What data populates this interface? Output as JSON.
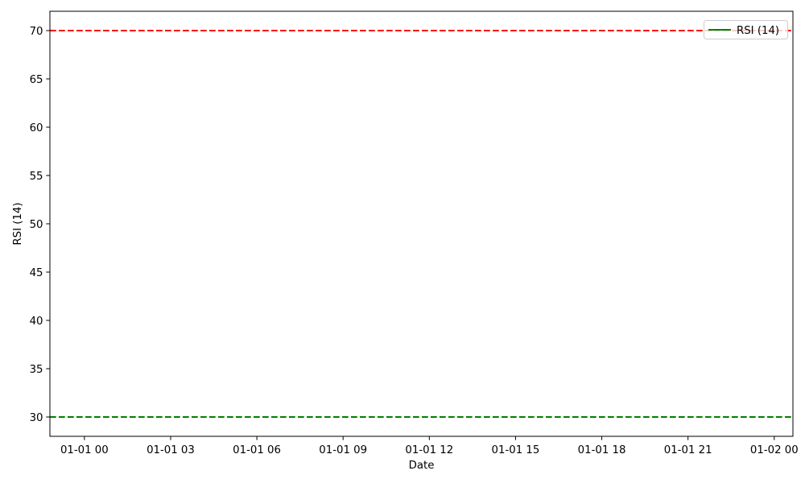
{
  "figure": {
    "background": "#ffffff"
  },
  "chart_data": {
    "type": "line",
    "title": "",
    "xlabel": "Date",
    "ylabel": "RSI (14)",
    "x_ticks": [
      0,
      3,
      6,
      9,
      12,
      15,
      18,
      21,
      24
    ],
    "x_tick_labels": [
      "01-01 00",
      "01-01 03",
      "01-01 06",
      "01-01 09",
      "01-01 12",
      "01-01 15",
      "01-01 18",
      "01-01 21",
      "01-02 00"
    ],
    "xlim": [
      -1.2,
      24.65
    ],
    "y_ticks": [
      30,
      35,
      40,
      45,
      50,
      55,
      60,
      65,
      70
    ],
    "y_tick_labels": [
      "30",
      "35",
      "40",
      "45",
      "50",
      "55",
      "60",
      "65",
      "70"
    ],
    "ylim": [
      28,
      72
    ],
    "grid": false,
    "series": [
      {
        "name": "RSI (14)",
        "color": "#008000",
        "linestyle": "solid",
        "x": [],
        "y": []
      }
    ],
    "reference_lines": [
      {
        "y": 70,
        "color": "#ff0000",
        "linestyle": "dashed"
      },
      {
        "y": 30,
        "color": "#008000",
        "linestyle": "dashed"
      }
    ],
    "legend": {
      "position": "upper right",
      "entries": [
        {
          "label": "RSI (14)",
          "color": "#008000",
          "linestyle": "solid"
        }
      ]
    },
    "axis_color": "#000000",
    "text_color": "#000000",
    "legend_border_color": "#cccccc",
    "legend_background": "#ffffff"
  }
}
